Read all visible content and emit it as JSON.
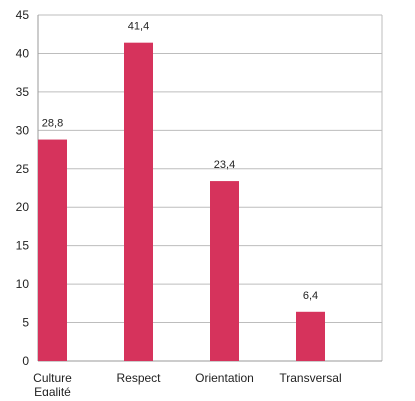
{
  "chart_data": {
    "type": "bar",
    "categories": [
      "Culture\nEgalité",
      "Respect",
      "Orientation",
      "Transversal"
    ],
    "values": [
      28.8,
      41.4,
      23.4,
      6.4
    ],
    "value_labels": [
      "28,8",
      "41,4",
      "23,4",
      "6,4"
    ],
    "ylim": [
      0,
      45
    ],
    "yticks": [
      0,
      5,
      10,
      15,
      20,
      25,
      30,
      35,
      40,
      45
    ],
    "grid": true,
    "legend": "none",
    "bar_color": "#d6335c",
    "grid_color": "#bdbdbd",
    "axis_color": "#9a9a9a"
  }
}
